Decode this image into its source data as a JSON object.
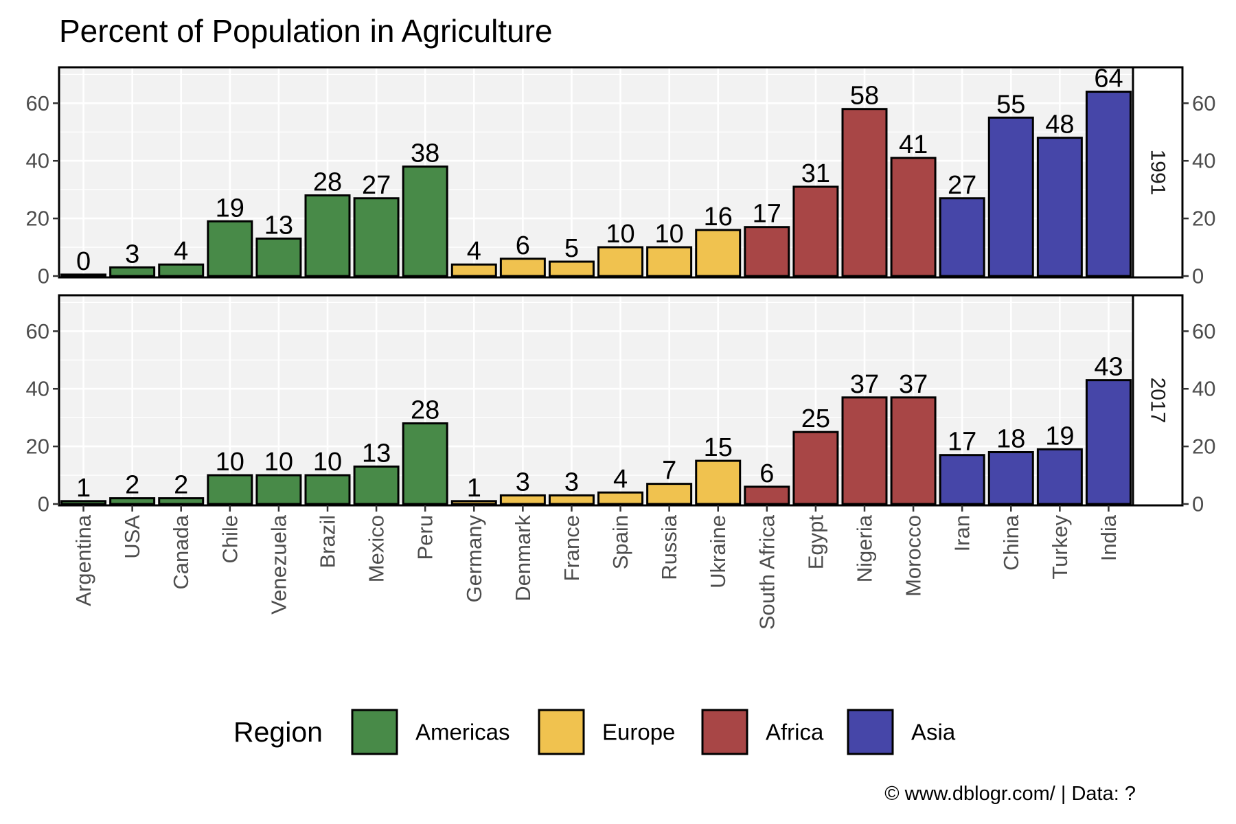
{
  "chart_data": {
    "type": "bar",
    "title": "Percent of Population in Agriculture",
    "xlabel": "",
    "ylabel": "",
    "ylim": [
      0,
      72
    ],
    "yticks": [
      0,
      20,
      40,
      60
    ],
    "grid": true,
    "categories": [
      "Argentina",
      "USA",
      "Canada",
      "Chile",
      "Venezuela",
      "Brazil",
      "Mexico",
      "Peru",
      "Germany",
      "Denmark",
      "France",
      "Spain",
      "Russia",
      "Ukraine",
      "South Africa",
      "Egypt",
      "Nigeria",
      "Morocco",
      "Iran",
      "China",
      "Turkey",
      "India"
    ],
    "regions": [
      "Americas",
      "Americas",
      "Americas",
      "Americas",
      "Americas",
      "Americas",
      "Americas",
      "Americas",
      "Europe",
      "Europe",
      "Europe",
      "Europe",
      "Europe",
      "Europe",
      "Africa",
      "Africa",
      "Africa",
      "Africa",
      "Asia",
      "Asia",
      "Asia",
      "Asia"
    ],
    "facets": [
      {
        "name": "1991",
        "values": [
          0.5,
          3,
          4,
          19,
          13,
          28,
          27,
          38,
          4,
          6,
          5,
          10,
          10,
          16,
          17,
          31,
          58,
          41,
          27,
          55,
          48,
          64
        ],
        "labels": [
          "0",
          "3",
          "4",
          "19",
          "13",
          "28",
          "27",
          "38",
          "4",
          "6",
          "5",
          "10",
          "10",
          "16",
          "17",
          "31",
          "58",
          "41",
          "27",
          "55",
          "48",
          "64"
        ]
      },
      {
        "name": "2017",
        "values": [
          1,
          2,
          2,
          10,
          10,
          10,
          13,
          28,
          1,
          3,
          3,
          4,
          7,
          15,
          6,
          25,
          37,
          37,
          17,
          18,
          19,
          43
        ],
        "labels": [
          "1",
          "2",
          "2",
          "10",
          "10",
          "10",
          "13",
          "28",
          "1",
          "3",
          "3",
          "4",
          "7",
          "15",
          "6",
          "25",
          "37",
          "37",
          "17",
          "18",
          "19",
          "43"
        ]
      }
    ],
    "legend": {
      "title": "Region",
      "position": "bottom",
      "items": [
        {
          "name": "Americas",
          "color": "#488a48"
        },
        {
          "name": "Europe",
          "color": "#f0c24f"
        },
        {
          "name": "Africa",
          "color": "#a84646"
        },
        {
          "name": "Asia",
          "color": "#4646a8"
        }
      ]
    },
    "caption": "© www.dblogr.com/  |  Data: ?"
  }
}
